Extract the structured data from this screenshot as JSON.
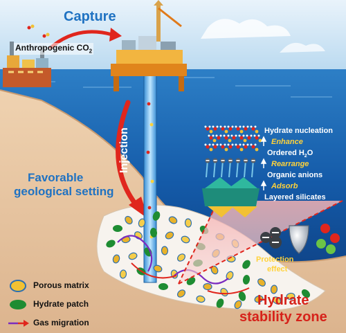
{
  "labels": {
    "capture": "Capture",
    "anthropogenic_prefix": "Anthropogenic CO",
    "anthropogenic_sub": "2",
    "injection": "Injection",
    "favorable_line1": "Favorable",
    "favorable_line2": "geological setting",
    "hydrate_zone_line1": "Hydrate",
    "hydrate_zone_line2": "stability zone",
    "protection_line1": "Protection",
    "protection_line2": "effect"
  },
  "mechanism": {
    "steps": [
      "Hydrate nucleation",
      "Ordered H",
      "Organic anions",
      "Layered silicates"
    ],
    "water_sub": "2",
    "water_suffix": "O",
    "transitions": [
      "Enhance",
      "Rearrange",
      "Adsorb"
    ]
  },
  "legend": [
    {
      "label": "Porous matrix"
    },
    {
      "label": "Hydrate patch"
    },
    {
      "label": "Gas migration"
    }
  ],
  "colors": {
    "sky": "#d2e8f6",
    "sea": "#1c63b4",
    "sediment": "#e6c7a6",
    "arrow_red": "#e0261d",
    "capture_blue": "#1f72c2",
    "zone_red": "#d6221a",
    "label_yellow": "#ffd23a",
    "hydrate_green": "#1e8c32",
    "matrix_gold": "#f2c133"
  },
  "icons": [
    "factory-icon",
    "oil-platform-icon",
    "shield-icon",
    "ion-sphere-icon"
  ]
}
